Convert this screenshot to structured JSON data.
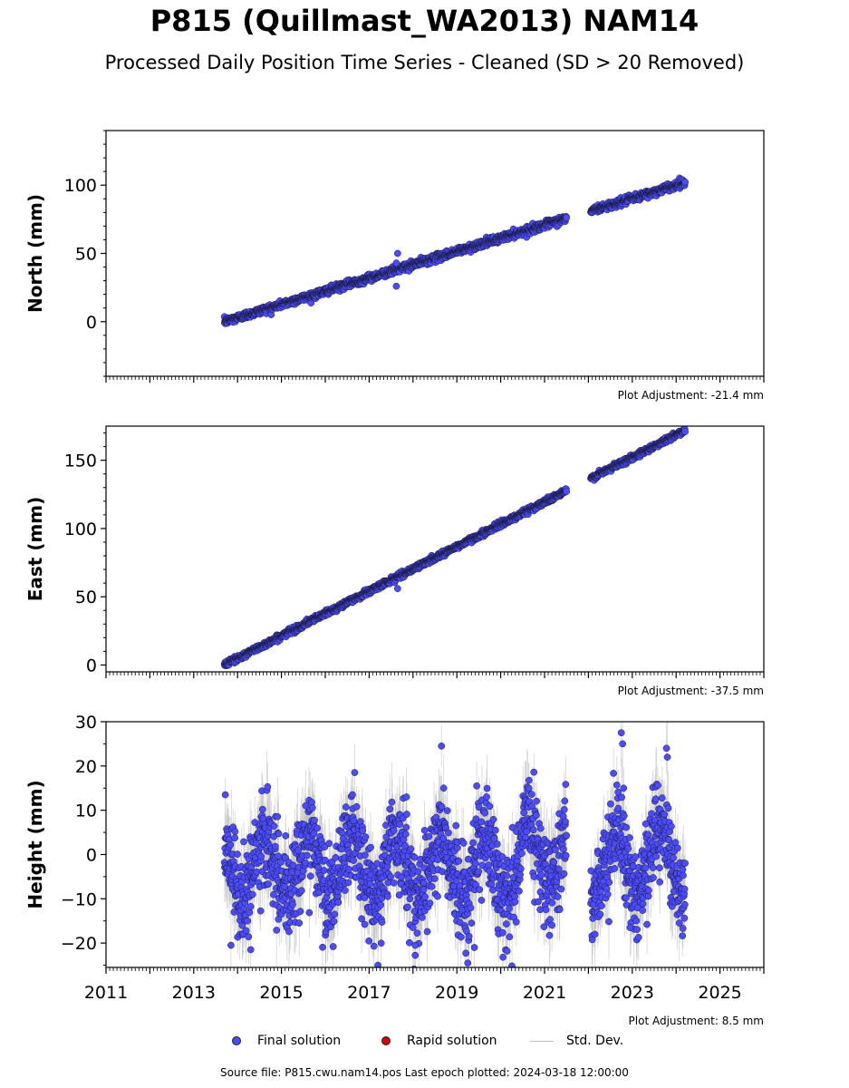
{
  "header": {
    "title": "P815 (Quillmast_WA2013) NAM14",
    "subtitle": "Processed Daily Position Time Series - Cleaned (SD > 20 Removed)"
  },
  "legend": {
    "final": "Final solution",
    "rapid": "Rapid solution",
    "std": "Std. Dev."
  },
  "footer": {
    "source": "Source file: P815.cwu.nam14.pos  Last epoch plotted: 2024-03-18 12:00:00"
  },
  "colors": {
    "final": "#4b4bff",
    "rapid": "#dd0000",
    "std": "#c0c0c0",
    "edge": "#1a1a3a"
  },
  "chart_data": [
    {
      "type": "scatter",
      "ylabel": "North (mm)",
      "adjustment": "Plot Adjustment: -21.4 mm",
      "xlim": [
        2011,
        2026
      ],
      "ylim": [
        -40,
        140
      ],
      "yticks": [
        0,
        50,
        100
      ],
      "xtick_labels_shown": false,
      "trend": {
        "start": [
          2013.7,
          0
        ],
        "end": [
          2024.21,
          102
        ]
      },
      "gaps": [
        [
          2021.5,
          2022.05
        ]
      ],
      "noise": 1.3,
      "data_span": [
        2013.7,
        2024.21
      ],
      "anomalies": [
        {
          "x": 2017.62,
          "y": 43
        },
        {
          "x": 2017.62,
          "y": 26
        },
        {
          "x": 2017.65,
          "y": 50
        }
      ]
    },
    {
      "type": "scatter",
      "ylabel": "East (mm)",
      "adjustment": "Plot Adjustment: -37.5 mm",
      "xlim": [
        2011,
        2026
      ],
      "ylim": [
        -5,
        175
      ],
      "yticks": [
        0,
        50,
        100,
        150
      ],
      "xtick_labels_shown": false,
      "trend": {
        "start": [
          2013.7,
          0
        ],
        "end": [
          2024.21,
          172
        ]
      },
      "gaps": [
        [
          2021.5,
          2022.05
        ]
      ],
      "noise": 1.0,
      "data_span": [
        2013.7,
        2024.21
      ],
      "anomalies": [
        {
          "x": 2017.65,
          "y": 56
        }
      ]
    },
    {
      "type": "scatter",
      "ylabel": "Height (mm)",
      "adjustment": "Plot Adjustment: 8.5 mm",
      "xlim": [
        2011,
        2026
      ],
      "ylim": [
        -25.5,
        30
      ],
      "yticks": [
        -20,
        -10,
        0,
        10,
        20,
        30
      ],
      "xtick_labels": [
        2011,
        2013,
        2015,
        2017,
        2019,
        2021,
        2023,
        2025
      ],
      "xtick_labels_shown": true,
      "seasonal": {
        "amplitude": 7,
        "mean": -3,
        "phase_peak": 0.62,
        "noise": 5
      },
      "gaps": [
        [
          2021.5,
          2022.05
        ]
      ],
      "data_span": [
        2013.7,
        2024.21
      ],
      "anomalies": [
        {
          "x": 2013.72,
          "y": 13.5
        },
        {
          "x": 2016.62,
          "y": 13.5
        },
        {
          "x": 2017.85,
          "y": 13
        },
        {
          "x": 2018.65,
          "y": 24.5
        },
        {
          "x": 2018.7,
          "y": 15
        },
        {
          "x": 2022.75,
          "y": 27.5
        },
        {
          "x": 2022.78,
          "y": 25
        },
        {
          "x": 2023.78,
          "y": 24
        },
        {
          "x": 2023.8,
          "y": 22
        },
        {
          "x": 2013.85,
          "y": -20.5
        },
        {
          "x": 2014.3,
          "y": -21.5
        },
        {
          "x": 2017.2,
          "y": -25
        },
        {
          "x": 2018.05,
          "y": -20.5
        },
        {
          "x": 2019.4,
          "y": -21
        },
        {
          "x": 2022.95,
          "y": -16.5
        }
      ]
    }
  ]
}
